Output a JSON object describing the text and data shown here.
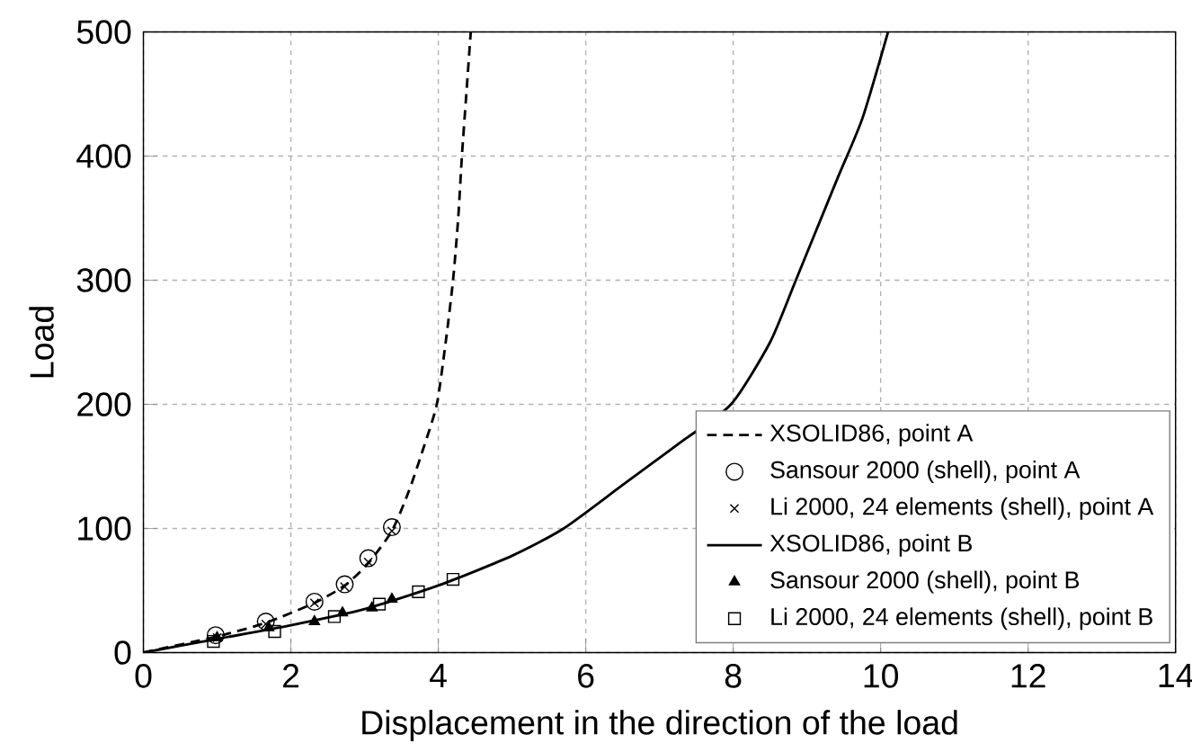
{
  "chart_data": {
    "type": "line",
    "xlabel": "Displacement in the direction of the load",
    "ylabel": "Load",
    "xlim": [
      0,
      14
    ],
    "ylim": [
      0,
      500
    ],
    "xticks": [
      0,
      2,
      4,
      6,
      8,
      10,
      12,
      14
    ],
    "yticks": [
      0,
      100,
      200,
      300,
      400,
      500
    ],
    "grid": true,
    "legend": "bottom right",
    "series": [
      {
        "name": "XSOLID86, point A",
        "line_style": "dashed",
        "marker": "none",
        "color": "#000000",
        "x": [
          0,
          1,
          1.66,
          2.32,
          2.73,
          3.05,
          3.37,
          3.6,
          3.8,
          3.98,
          4.1,
          4.2,
          4.27,
          4.32,
          4.38,
          4.44
        ],
        "values": [
          0,
          13,
          24,
          40,
          54,
          72,
          98,
          130,
          165,
          200,
          250,
          300,
          350,
          400,
          450,
          500
        ]
      },
      {
        "name": "Sansour 2000 (shell), point A",
        "type": "scatter",
        "marker": "circle",
        "color": "#000000",
        "x": [
          0.98,
          1.66,
          2.32,
          2.73,
          3.05,
          3.37
        ],
        "values": [
          14,
          25,
          41,
          55,
          76,
          101
        ]
      },
      {
        "name": "Li 2000, 24 elements (shell), point A",
        "type": "scatter",
        "marker": "cross",
        "color": "#000000",
        "x": [
          1.0,
          1.66,
          2.32,
          2.73,
          3.05,
          3.37
        ],
        "values": [
          12,
          23,
          40,
          53,
          73,
          98
        ]
      },
      {
        "name": "XSOLID86, point B",
        "line_style": "solid",
        "marker": "none",
        "color": "#000000",
        "x": [
          0,
          1,
          2,
          3,
          4,
          5,
          5.7,
          6.5,
          7.3,
          7.97,
          8.5,
          8.85,
          9.4,
          9.75,
          10.1
        ],
        "values": [
          0,
          11,
          22,
          35,
          54,
          78,
          100,
          135,
          170,
          200,
          250,
          300,
          380,
          430,
          500
        ]
      },
      {
        "name": "Sansour 2000 (shell), point B",
        "type": "scatter",
        "marker": "triangle",
        "color": "#000000",
        "x": [
          1.0,
          1.7,
          2.32,
          2.7,
          3.1,
          3.37
        ],
        "values": [
          12,
          20,
          25,
          32,
          36,
          43
        ]
      },
      {
        "name": "Li 2000, 24 elements (shell), point B",
        "type": "scatter",
        "marker": "square",
        "color": "#000000",
        "x": [
          0.95,
          1.78,
          2.59,
          3.2,
          3.73,
          4.2
        ],
        "values": [
          9,
          17,
          29,
          39,
          49,
          59
        ]
      }
    ]
  }
}
